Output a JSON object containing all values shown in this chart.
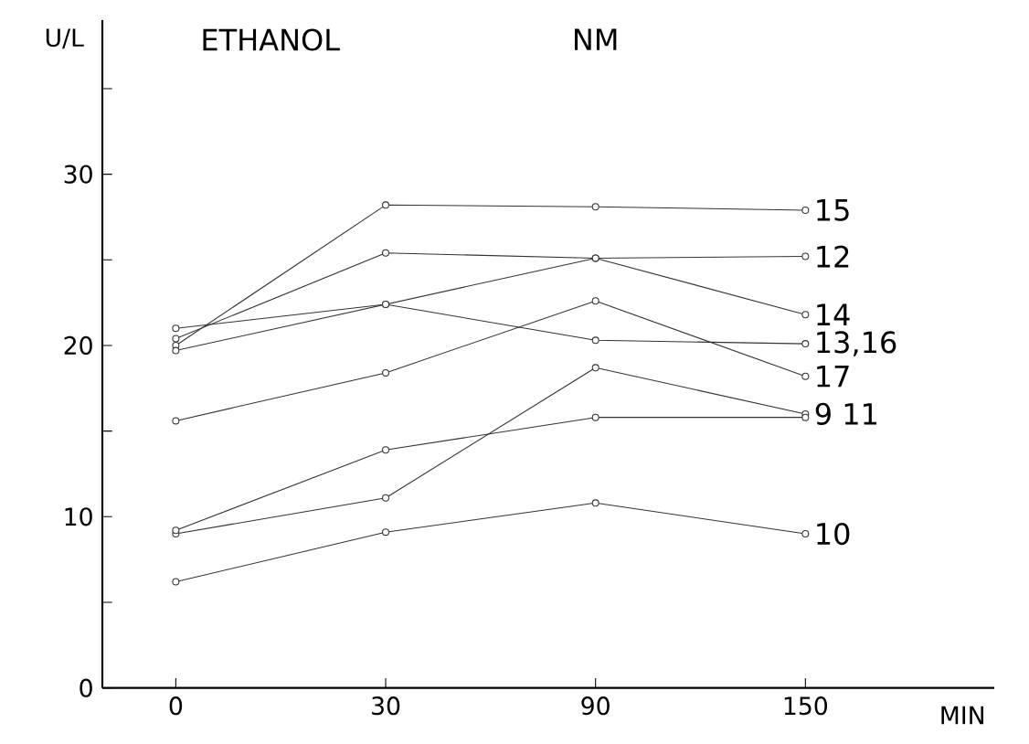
{
  "chart_data": {
    "type": "line",
    "xlabel": "MIN",
    "ylabel": "U/L",
    "annotations": [
      "ETHANOL",
      "NM"
    ],
    "categories": [
      "0",
      "30",
      "90",
      "150"
    ],
    "ylim": [
      0,
      39
    ],
    "yticks": [
      0,
      {
        "value": 5,
        "label": null
      },
      10,
      {
        "value": 15,
        "label": null
      },
      20,
      {
        "value": 25,
        "label": null
      },
      30,
      {
        "value": 35,
        "label": null
      }
    ],
    "grid": false,
    "marker": "circle",
    "line_style": "solid",
    "series": [
      {
        "name": "15",
        "color": "#333333",
        "values": [
          20.0,
          28.2,
          28.1,
          27.9
        ]
      },
      {
        "name": "12",
        "color": "#333333",
        "values": [
          20.4,
          25.4,
          25.1,
          25.2
        ]
      },
      {
        "name": "14",
        "color": "#333333",
        "values": [
          19.7,
          22.4,
          25.1,
          21.8
        ]
      },
      {
        "name": "13,16",
        "color": "#333333",
        "values": [
          21.0,
          22.4,
          20.3,
          20.1
        ]
      },
      {
        "name": "17",
        "color": "#333333",
        "values": [
          15.6,
          18.4,
          22.6,
          18.2
        ]
      },
      {
        "name": "9 11",
        "color": "#333333",
        "values": [
          9.0,
          11.1,
          18.7,
          16.0
        ]
      },
      {
        "color": "#333333",
        "values": [
          9.2,
          13.9,
          15.8,
          15.8
        ]
      },
      {
        "name": "10",
        "color": "#333333",
        "values": [
          6.2,
          9.1,
          10.8,
          9.0
        ]
      }
    ]
  }
}
